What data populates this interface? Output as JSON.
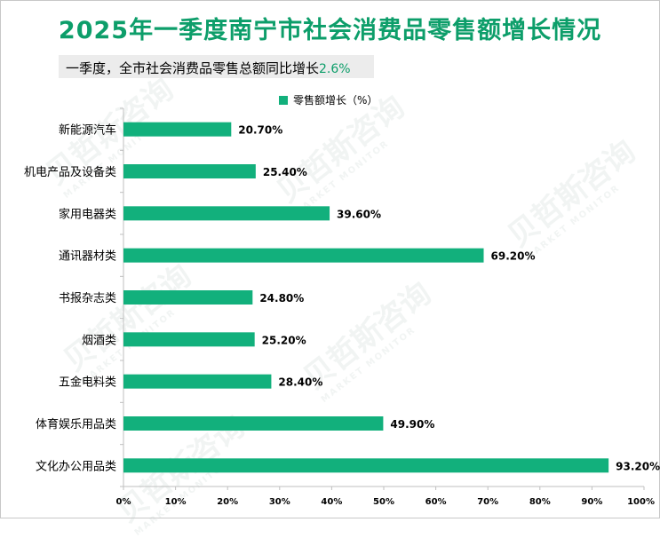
{
  "title": "2025年一季度南宁市社会消费品零售额增长情况",
  "subtitle": {
    "text": "一季度，全市社会消费品零售总额同比增长",
    "highlight": "2.6%"
  },
  "legend": "零售额增长（%）",
  "watermark": {
    "cn": "贝哲斯咨询",
    "en": "MARKET MONITOR"
  },
  "colors": {
    "bar": "#12b07c",
    "title": "#0d9e6a",
    "axis": "#bfbfbf"
  },
  "chart_data": {
    "type": "bar",
    "orientation": "horizontal",
    "title": "2025年一季度南宁市社会消费品零售额增长情况",
    "categories": [
      "新能源汽车",
      "机电产品及设备类",
      "家用电器类",
      "通讯器材类",
      "书报杂志类",
      "烟酒类",
      "五金电料类",
      "体育娱乐用品类",
      "文化办公用品类"
    ],
    "values": [
      20.7,
      25.4,
      39.6,
      69.2,
      24.8,
      25.2,
      28.4,
      49.9,
      93.2
    ],
    "value_labels": [
      "20.70%",
      "25.40%",
      "39.60%",
      "69.20%",
      "24.80%",
      "25.20%",
      "28.40%",
      "49.90%",
      "93.20%"
    ],
    "series_name": "零售额增长（%）",
    "xlim": [
      0,
      100
    ],
    "xticks": [
      "0%",
      "10%",
      "20%",
      "30%",
      "40%",
      "50%",
      "60%",
      "70%",
      "80%",
      "90%",
      "100%"
    ],
    "grid": false,
    "legend_position": "top-center"
  }
}
